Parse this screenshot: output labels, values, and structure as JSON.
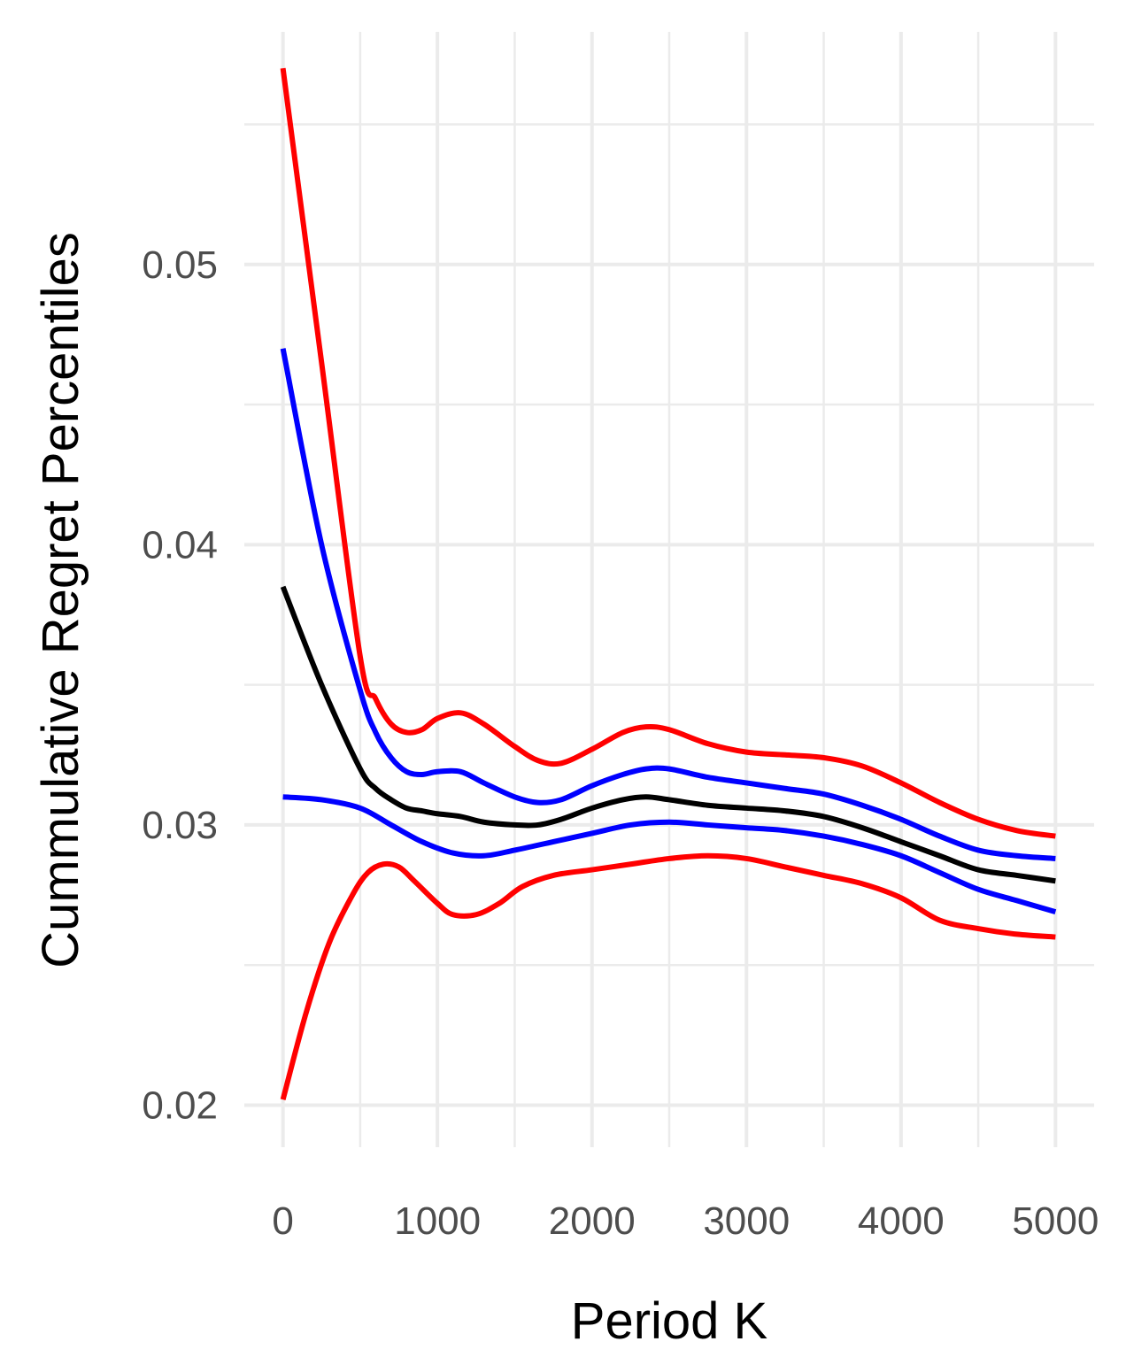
{
  "chart_data": {
    "type": "line",
    "title": "",
    "xlabel": "Period K",
    "ylabel": "Cummulative Regret Percentiles",
    "xlim": [
      -250,
      5250
    ],
    "ylim": [
      0.0185,
      0.0583
    ],
    "x_ticks": [
      0,
      1000,
      2000,
      3000,
      4000,
      5000
    ],
    "x_tick_labels": [
      "0",
      "1000",
      "2000",
      "3000",
      "4000",
      "5000"
    ],
    "y_ticks": [
      0.02,
      0.03,
      0.04,
      0.05
    ],
    "y_tick_labels": [
      "0.02",
      "0.03",
      "0.04",
      "0.05"
    ],
    "grid": true,
    "legend": "none",
    "series": [
      {
        "color": "#ff0000",
        "x": [
          0,
          250,
          500,
          600,
          700,
          800,
          900,
          1000,
          1150,
          1300,
          1500,
          1650,
          1800,
          2000,
          2200,
          2350,
          2500,
          2750,
          3000,
          3250,
          3500,
          3750,
          4000,
          4250,
          4500,
          4750,
          5000
        ],
        "y": [
          0.057,
          0.0465,
          0.036,
          0.0345,
          0.0336,
          0.0333,
          0.0334,
          0.0338,
          0.034,
          0.0336,
          0.0328,
          0.0323,
          0.0322,
          0.0327,
          0.0333,
          0.0335,
          0.0334,
          0.0329,
          0.0326,
          0.0325,
          0.0324,
          0.0321,
          0.0315,
          0.0308,
          0.0302,
          0.0298,
          0.0296
        ]
      },
      {
        "color": "#0000ff",
        "x": [
          0,
          250,
          500,
          600,
          700,
          800,
          900,
          1000,
          1150,
          1300,
          1500,
          1650,
          1800,
          2000,
          2200,
          2350,
          2500,
          2750,
          3000,
          3250,
          3500,
          3750,
          4000,
          4250,
          4500,
          4750,
          5000
        ],
        "y": [
          0.047,
          0.04,
          0.0348,
          0.0333,
          0.0324,
          0.0319,
          0.0318,
          0.0319,
          0.0319,
          0.0315,
          0.031,
          0.0308,
          0.0309,
          0.0314,
          0.0318,
          0.032,
          0.032,
          0.0317,
          0.0315,
          0.0313,
          0.0311,
          0.0307,
          0.0302,
          0.0296,
          0.0291,
          0.0289,
          0.0288
        ]
      },
      {
        "color": "#000000",
        "x": [
          0,
          250,
          500,
          600,
          700,
          800,
          900,
          1000,
          1150,
          1300,
          1500,
          1650,
          1800,
          2000,
          2200,
          2350,
          2500,
          2750,
          3000,
          3250,
          3500,
          3750,
          4000,
          4250,
          4500,
          4750,
          5000
        ],
        "y": [
          0.0385,
          0.035,
          0.032,
          0.0313,
          0.0309,
          0.0306,
          0.0305,
          0.0304,
          0.0303,
          0.0301,
          0.03,
          0.03,
          0.0302,
          0.0306,
          0.0309,
          0.031,
          0.0309,
          0.0307,
          0.0306,
          0.0305,
          0.0303,
          0.0299,
          0.0294,
          0.0289,
          0.0284,
          0.0282,
          0.028
        ]
      },
      {
        "color": "#0000ff",
        "x": [
          0,
          250,
          500,
          700,
          900,
          1100,
          1300,
          1500,
          1750,
          2000,
          2250,
          2500,
          2750,
          3000,
          3250,
          3500,
          3750,
          4000,
          4250,
          4500,
          4750,
          5000
        ],
        "y": [
          0.031,
          0.0309,
          0.0306,
          0.03,
          0.0294,
          0.029,
          0.0289,
          0.0291,
          0.0294,
          0.0297,
          0.03,
          0.0301,
          0.03,
          0.0299,
          0.0298,
          0.0296,
          0.0293,
          0.0289,
          0.0283,
          0.0277,
          0.0273,
          0.0269
        ]
      },
      {
        "color": "#ff0000",
        "x": [
          0,
          150,
          300,
          450,
          550,
          650,
          750,
          850,
          1000,
          1100,
          1250,
          1400,
          1550,
          1750,
          2000,
          2250,
          2500,
          2750,
          3000,
          3250,
          3500,
          3750,
          4000,
          4250,
          4500,
          4750,
          5000
        ],
        "y": [
          0.0202,
          0.0233,
          0.0258,
          0.0275,
          0.0283,
          0.0286,
          0.0285,
          0.028,
          0.0272,
          0.0268,
          0.0268,
          0.0272,
          0.0278,
          0.0282,
          0.0284,
          0.0286,
          0.0288,
          0.0289,
          0.0288,
          0.0285,
          0.0282,
          0.0279,
          0.0274,
          0.0266,
          0.0263,
          0.0261,
          0.026
        ]
      }
    ]
  }
}
